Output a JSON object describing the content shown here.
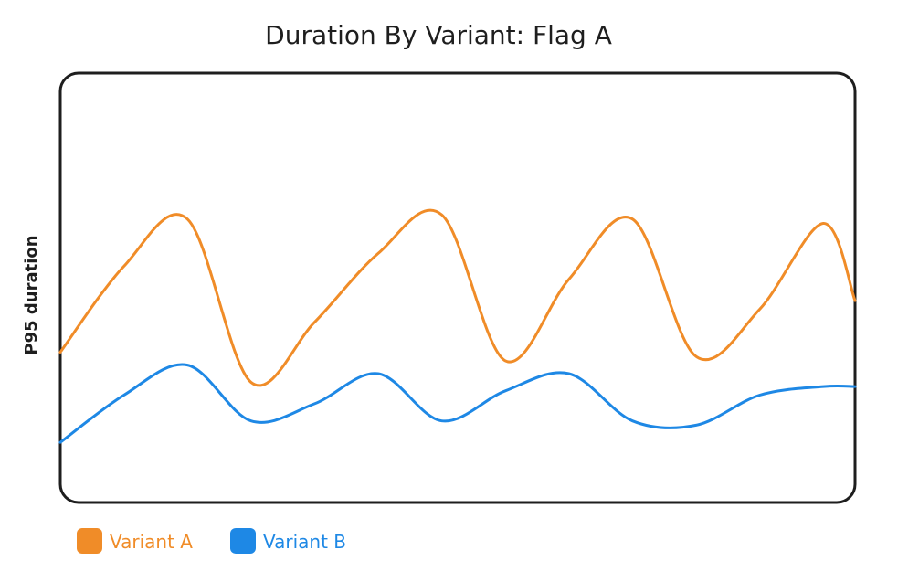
{
  "chart_data": {
    "type": "line",
    "title": "Duration By Variant: Flag A",
    "xlabel": "",
    "ylabel": "P95 duration",
    "ylim": [
      0,
      100
    ],
    "grid": false,
    "legend": "bottom-left",
    "x": [
      0,
      8,
      16,
      24,
      32,
      40,
      48,
      56,
      64,
      72,
      80,
      88,
      96,
      100
    ],
    "series": [
      {
        "name": "Variant A",
        "color": "#f08c28",
        "values": [
          35,
          55,
          66,
          28,
          42,
          58,
          67,
          33,
          52,
          66,
          34,
          45,
          65,
          47
        ]
      },
      {
        "name": "Variant B",
        "color": "#1e88e5",
        "values": [
          14,
          25,
          32,
          19,
          23,
          30,
          19,
          26,
          30,
          19,
          18,
          25,
          27,
          27
        ]
      }
    ]
  }
}
